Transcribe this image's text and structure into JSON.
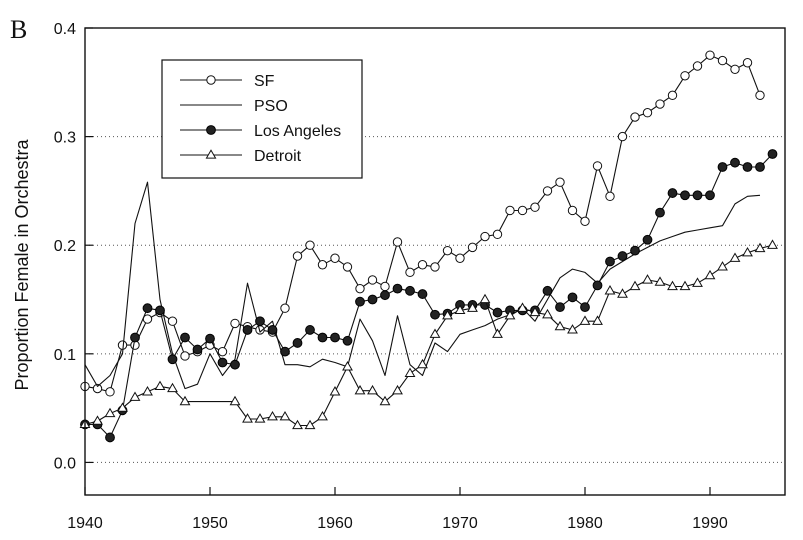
{
  "chart_data": {
    "type": "line",
    "panel_label": "B",
    "title": "",
    "xlabel": "",
    "ylabel": "Proportion Female in Orchestra",
    "xlim": [
      1940,
      1996
    ],
    "ylim": [
      -0.03,
      0.4
    ],
    "x_ticks": [
      1940,
      1950,
      1960,
      1970,
      1980,
      1990
    ],
    "y_ticks": [
      0.0,
      0.1,
      0.2,
      0.3,
      0.4
    ],
    "y_tick_labels": [
      "0.0",
      "0.1",
      "0.2",
      "0.3",
      "0.4"
    ],
    "grid": "horizontal dotted",
    "legend_position": "top-left",
    "series": [
      {
        "name": "SF",
        "marker": "open-circle",
        "points": [
          [
            1940,
            0.07
          ],
          [
            1941,
            0.068
          ],
          [
            1942,
            0.065
          ],
          [
            1943,
            0.108
          ],
          [
            1944,
            0.108
          ],
          [
            1945,
            0.132
          ],
          [
            1946,
            0.138
          ],
          [
            1947,
            0.13
          ],
          [
            1948,
            0.098
          ],
          [
            1949,
            0.102
          ],
          [
            1950,
            0.108
          ],
          [
            1951,
            0.102
          ],
          [
            1952,
            0.128
          ],
          [
            1953,
            0.125
          ],
          [
            1954,
            0.122
          ],
          [
            1955,
            0.12
          ],
          [
            1956,
            0.142
          ],
          [
            1957,
            0.19
          ],
          [
            1958,
            0.2
          ],
          [
            1959,
            0.182
          ],
          [
            1960,
            0.188
          ],
          [
            1961,
            0.18
          ],
          [
            1962,
            0.16
          ],
          [
            1963,
            0.168
          ],
          [
            1964,
            0.162
          ],
          [
            1965,
            0.203
          ],
          [
            1966,
            0.175
          ],
          [
            1967,
            0.182
          ],
          [
            1968,
            0.18
          ],
          [
            1969,
            0.195
          ],
          [
            1970,
            0.188
          ],
          [
            1971,
            0.198
          ],
          [
            1972,
            0.208
          ],
          [
            1973,
            0.21
          ],
          [
            1974,
            0.232
          ],
          [
            1975,
            0.232
          ],
          [
            1976,
            0.235
          ],
          [
            1977,
            0.25
          ],
          [
            1978,
            0.258
          ],
          [
            1979,
            0.232
          ],
          [
            1980,
            0.222
          ],
          [
            1981,
            0.273
          ],
          [
            1982,
            0.245
          ],
          [
            1983,
            0.3
          ],
          [
            1984,
            0.318
          ],
          [
            1985,
            0.322
          ],
          [
            1986,
            0.33
          ],
          [
            1987,
            0.338
          ],
          [
            1988,
            0.356
          ],
          [
            1989,
            0.365
          ],
          [
            1990,
            0.375
          ],
          [
            1991,
            0.37
          ],
          [
            1992,
            0.362
          ],
          [
            1993,
            0.368
          ],
          [
            1994,
            0.338
          ]
        ]
      },
      {
        "name": "PSO",
        "marker": "none",
        "points": [
          [
            1940,
            0.09
          ],
          [
            1941,
            0.07
          ],
          [
            1942,
            0.08
          ],
          [
            1943,
            0.1
          ],
          [
            1944,
            0.22
          ],
          [
            1945,
            0.258
          ],
          [
            1946,
            0.15
          ],
          [
            1947,
            0.1
          ],
          [
            1948,
            0.068
          ],
          [
            1949,
            0.072
          ],
          [
            1950,
            0.1
          ],
          [
            1951,
            0.08
          ],
          [
            1952,
            0.095
          ],
          [
            1953,
            0.165
          ],
          [
            1954,
            0.12
          ],
          [
            1955,
            0.13
          ],
          [
            1956,
            0.09
          ],
          [
            1957,
            0.09
          ],
          [
            1958,
            0.088
          ],
          [
            1959,
            0.095
          ],
          [
            1960,
            0.092
          ],
          [
            1961,
            0.088
          ],
          [
            1962,
            0.132
          ],
          [
            1963,
            0.112
          ],
          [
            1964,
            0.08
          ],
          [
            1965,
            0.135
          ],
          [
            1966,
            0.09
          ],
          [
            1967,
            0.08
          ],
          [
            1968,
            0.11
          ],
          [
            1969,
            0.102
          ],
          [
            1970,
            0.118
          ],
          [
            1971,
            0.122
          ],
          [
            1972,
            0.126
          ],
          [
            1973,
            0.132
          ],
          [
            1974,
            0.136
          ],
          [
            1975,
            0.142
          ],
          [
            1976,
            0.13
          ],
          [
            1977,
            0.15
          ],
          [
            1978,
            0.17
          ],
          [
            1979,
            0.178
          ],
          [
            1980,
            0.175
          ],
          [
            1981,
            0.165
          ],
          [
            1982,
            0.178
          ],
          [
            1983,
            0.185
          ],
          [
            1984,
            0.192
          ],
          [
            1985,
            0.198
          ],
          [
            1986,
            0.204
          ],
          [
            1987,
            0.208
          ],
          [
            1988,
            0.212
          ],
          [
            1989,
            0.214
          ],
          [
            1990,
            0.216
          ],
          [
            1991,
            0.218
          ],
          [
            1992,
            0.238
          ],
          [
            1993,
            0.245
          ],
          [
            1994,
            0.246
          ]
        ]
      },
      {
        "name": "Los Angeles",
        "marker": "filled-circle",
        "points": [
          [
            1940,
            0.035
          ],
          [
            1941,
            0.035
          ],
          [
            1942,
            0.023
          ],
          [
            1943,
            0.048
          ],
          [
            1944,
            0.115
          ],
          [
            1945,
            0.142
          ],
          [
            1946,
            0.14
          ],
          [
            1947,
            0.095
          ],
          [
            1948,
            0.115
          ],
          [
            1949,
            0.104
          ],
          [
            1950,
            0.114
          ],
          [
            1951,
            0.092
          ],
          [
            1952,
            0.09
          ],
          [
            1953,
            0.122
          ],
          [
            1954,
            0.13
          ],
          [
            1955,
            0.122
          ],
          [
            1956,
            0.102
          ],
          [
            1957,
            0.11
          ],
          [
            1958,
            0.122
          ],
          [
            1959,
            0.115
          ],
          [
            1960,
            0.115
          ],
          [
            1961,
            0.112
          ],
          [
            1962,
            0.148
          ],
          [
            1963,
            0.15
          ],
          [
            1964,
            0.154
          ],
          [
            1965,
            0.16
          ],
          [
            1966,
            0.158
          ],
          [
            1967,
            0.155
          ],
          [
            1968,
            0.136
          ],
          [
            1969,
            0.137
          ],
          [
            1970,
            0.145
          ],
          [
            1971,
            0.145
          ],
          [
            1972,
            0.145
          ],
          [
            1973,
            0.138
          ],
          [
            1974,
            0.14
          ],
          [
            1975,
            0.14
          ],
          [
            1976,
            0.14
          ],
          [
            1977,
            0.158
          ],
          [
            1978,
            0.143
          ],
          [
            1979,
            0.152
          ],
          [
            1980,
            0.143
          ],
          [
            1981,
            0.163
          ],
          [
            1982,
            0.185
          ],
          [
            1983,
            0.19
          ],
          [
            1984,
            0.195
          ],
          [
            1985,
            0.205
          ],
          [
            1986,
            0.23
          ],
          [
            1987,
            0.248
          ],
          [
            1988,
            0.246
          ],
          [
            1989,
            0.246
          ],
          [
            1990,
            0.246
          ],
          [
            1991,
            0.272
          ],
          [
            1992,
            0.276
          ],
          [
            1993,
            0.272
          ],
          [
            1994,
            0.272
          ],
          [
            1995,
            0.284
          ]
        ]
      },
      {
        "name": "Detroit",
        "marker": "open-triangle",
        "points": [
          [
            1940,
            0.035
          ],
          [
            1941,
            0.038
          ],
          [
            1942,
            0.045
          ],
          [
            1943,
            0.05
          ],
          [
            1944,
            0.06
          ],
          [
            1945,
            0.065
          ],
          [
            1946,
            0.07
          ],
          [
            1947,
            0.068
          ],
          [
            1948,
            0.056
          ],
          [
            1952,
            0.056
          ],
          [
            1953,
            0.04
          ],
          [
            1954,
            0.04
          ],
          [
            1955,
            0.042
          ],
          [
            1956,
            0.042
          ],
          [
            1957,
            0.034
          ],
          [
            1958,
            0.034
          ],
          [
            1959,
            0.042
          ],
          [
            1960,
            0.065
          ],
          [
            1961,
            0.088
          ],
          [
            1962,
            0.066
          ],
          [
            1963,
            0.066
          ],
          [
            1964,
            0.056
          ],
          [
            1965,
            0.066
          ],
          [
            1966,
            0.082
          ],
          [
            1967,
            0.09
          ],
          [
            1968,
            0.118
          ],
          [
            1969,
            0.135
          ],
          [
            1970,
            0.14
          ],
          [
            1971,
            0.142
          ],
          [
            1972,
            0.15
          ],
          [
            1973,
            0.118
          ],
          [
            1974,
            0.135
          ],
          [
            1975,
            0.142
          ],
          [
            1976,
            0.138
          ],
          [
            1977,
            0.136
          ],
          [
            1978,
            0.125
          ],
          [
            1979,
            0.122
          ],
          [
            1980,
            0.13
          ],
          [
            1981,
            0.13
          ],
          [
            1982,
            0.158
          ],
          [
            1983,
            0.155
          ],
          [
            1984,
            0.162
          ],
          [
            1985,
            0.168
          ],
          [
            1986,
            0.166
          ],
          [
            1987,
            0.162
          ],
          [
            1988,
            0.162
          ],
          [
            1989,
            0.165
          ],
          [
            1990,
            0.172
          ],
          [
            1991,
            0.18
          ],
          [
            1992,
            0.188
          ],
          [
            1993,
            0.193
          ],
          [
            1994,
            0.197
          ],
          [
            1995,
            0.2
          ]
        ]
      }
    ]
  }
}
